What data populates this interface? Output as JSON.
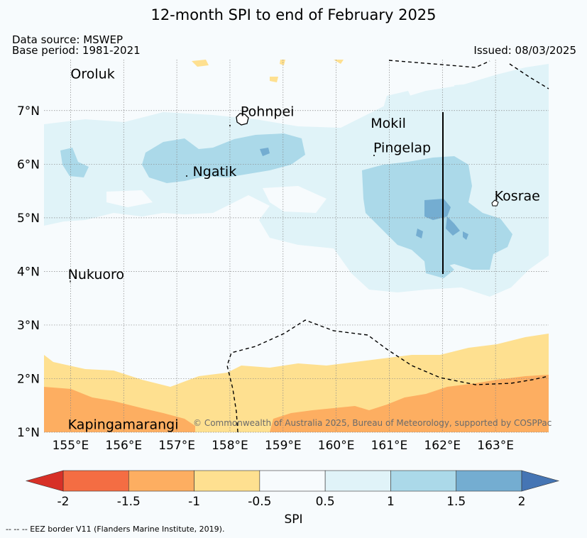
{
  "title": "12-month SPI to end of February 2025",
  "data_source": "Data source: MSWEP",
  "base_period": "Base period: 1981-2021",
  "issued": "Issued: 08/03/2025",
  "credit": "© Commonwealth of Australia 2025, Bureau of Meteorology, supported by COSPPac",
  "eez_note": "-- -- -- EEZ border V11 (Flanders Marine Institute, 2019).",
  "colorbar": {
    "label": "SPI",
    "ticks": [
      "-2",
      "-1.5",
      "-1",
      "-0.5",
      "0.5",
      "1",
      "1.5",
      "2"
    ],
    "colors": {
      "below_-2": "#d73027",
      "-2_-1.5": "#f46d43",
      "-1.5_-1": "#fdae61",
      "-1_-0.5": "#fee090",
      "-0.5_0.5": "#f7fbfd",
      "0.5_1": "#e0f3f8",
      "1_1.5": "#abd9e9",
      "1.5_2": "#74add1",
      "above_2": "#4575b4"
    }
  },
  "axes": {
    "x_ticks": [
      "155°E",
      "156°E",
      "157°E",
      "158°E",
      "159°E",
      "160°E",
      "161°E",
      "162°E",
      "163°E"
    ],
    "y_ticks": [
      "7°N",
      "6°N",
      "5°N",
      "4°N",
      "3°N",
      "2°N",
      "1°N"
    ],
    "lon_range": [
      154.5,
      164.0
    ],
    "lat_range": [
      1.0,
      7.95
    ]
  },
  "places": [
    {
      "name": "Oroluk",
      "lon": 155.0,
      "lat": 7.6
    },
    {
      "name": "Pohnpei",
      "lon": 158.2,
      "lat": 6.9
    },
    {
      "name": "Mokil",
      "lon": 160.65,
      "lat": 6.68
    },
    {
      "name": "Pingelap",
      "lon": 160.7,
      "lat": 6.22
    },
    {
      "name": "Ngatik",
      "lon": 157.3,
      "lat": 5.78
    },
    {
      "name": "Kosrae",
      "lon": 162.98,
      "lat": 5.32
    },
    {
      "name": "Nukuoro",
      "lon": 154.95,
      "lat": 3.86
    },
    {
      "name": "Kapingamarangi",
      "lon": 154.95,
      "lat": 1.06
    }
  ]
}
